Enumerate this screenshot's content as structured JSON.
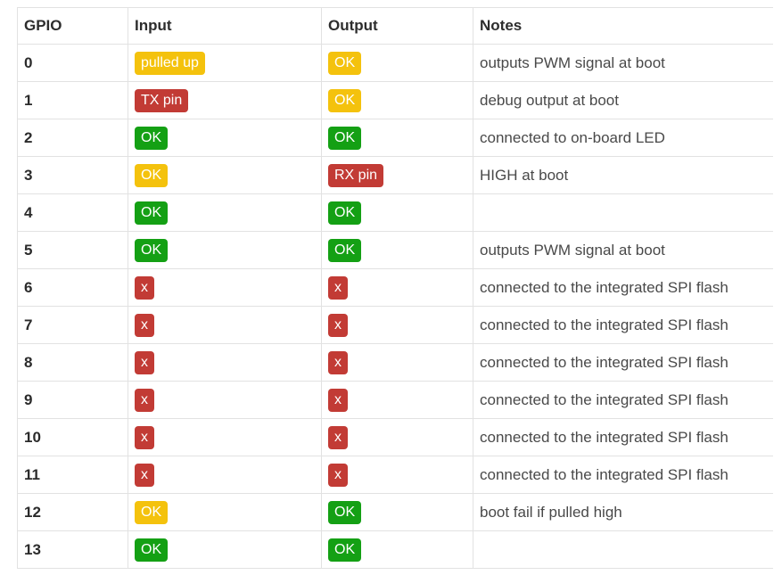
{
  "colors": {
    "success": "#14a014",
    "warning": "#f4c20d",
    "danger": "#c23b35",
    "badge_text": "#ffffff"
  },
  "table": {
    "columns": [
      {
        "key": "gpio",
        "label": "GPIO"
      },
      {
        "key": "input",
        "label": "Input"
      },
      {
        "key": "output",
        "label": "Output"
      },
      {
        "key": "notes",
        "label": "Notes"
      }
    ],
    "rows": [
      {
        "gpio": "0",
        "input": {
          "label": "pulled up",
          "variant": "warning"
        },
        "output": {
          "label": "OK",
          "variant": "warning"
        },
        "notes": "outputs PWM signal at boot"
      },
      {
        "gpio": "1",
        "input": {
          "label": "TX pin",
          "variant": "danger"
        },
        "output": {
          "label": "OK",
          "variant": "warning"
        },
        "notes": "debug output at boot"
      },
      {
        "gpio": "2",
        "input": {
          "label": "OK",
          "variant": "success"
        },
        "output": {
          "label": "OK",
          "variant": "success"
        },
        "notes": "connected to on-board LED"
      },
      {
        "gpio": "3",
        "input": {
          "label": "OK",
          "variant": "warning"
        },
        "output": {
          "label": "RX pin",
          "variant": "danger"
        },
        "notes": "HIGH at boot"
      },
      {
        "gpio": "4",
        "input": {
          "label": "OK",
          "variant": "success"
        },
        "output": {
          "label": "OK",
          "variant": "success"
        },
        "notes": ""
      },
      {
        "gpio": "5",
        "input": {
          "label": "OK",
          "variant": "success"
        },
        "output": {
          "label": "OK",
          "variant": "success"
        },
        "notes": "outputs PWM signal at boot"
      },
      {
        "gpio": "6",
        "input": {
          "label": "x",
          "variant": "danger"
        },
        "output": {
          "label": "x",
          "variant": "danger"
        },
        "notes": "connected to the integrated SPI flash"
      },
      {
        "gpio": "7",
        "input": {
          "label": "x",
          "variant": "danger"
        },
        "output": {
          "label": "x",
          "variant": "danger"
        },
        "notes": "connected to the integrated SPI flash"
      },
      {
        "gpio": "8",
        "input": {
          "label": "x",
          "variant": "danger"
        },
        "output": {
          "label": "x",
          "variant": "danger"
        },
        "notes": "connected to the integrated SPI flash"
      },
      {
        "gpio": "9",
        "input": {
          "label": "x",
          "variant": "danger"
        },
        "output": {
          "label": "x",
          "variant": "danger"
        },
        "notes": "connected to the integrated SPI flash"
      },
      {
        "gpio": "10",
        "input": {
          "label": "x",
          "variant": "danger"
        },
        "output": {
          "label": "x",
          "variant": "danger"
        },
        "notes": "connected to the integrated SPI flash"
      },
      {
        "gpio": "11",
        "input": {
          "label": "x",
          "variant": "danger"
        },
        "output": {
          "label": "x",
          "variant": "danger"
        },
        "notes": "connected to the integrated SPI flash"
      },
      {
        "gpio": "12",
        "input": {
          "label": "OK",
          "variant": "warning"
        },
        "output": {
          "label": "OK",
          "variant": "success"
        },
        "notes": "boot fail if pulled high"
      },
      {
        "gpio": "13",
        "input": {
          "label": "OK",
          "variant": "success"
        },
        "output": {
          "label": "OK",
          "variant": "success"
        },
        "notes": ""
      }
    ]
  }
}
